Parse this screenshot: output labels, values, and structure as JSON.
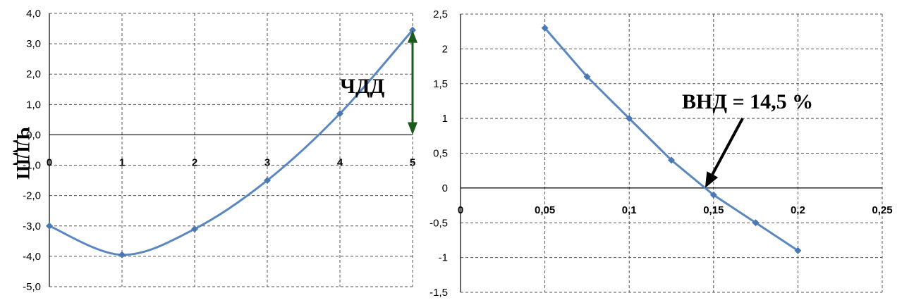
{
  "chart_data": [
    {
      "type": "line",
      "title": "",
      "xlabel": "",
      "ylabel": "ЧДДП",
      "x": [
        0,
        1,
        2,
        3,
        4,
        5
      ],
      "series": [
        {
          "values": [
            -3.0,
            -3.95,
            -3.1,
            -1.5,
            0.7,
            3.45
          ]
        }
      ],
      "xlim": [
        0,
        5
      ],
      "ylim": [
        -5.0,
        4.0
      ],
      "x_ticks": [
        "0",
        "1",
        "2",
        "3",
        "4",
        "5"
      ],
      "y_ticks": [
        "4,0",
        "3,0",
        "2,0",
        "1,0",
        "0,0",
        "-1,0",
        "-2,0",
        "-3,0",
        "-4,0",
        "-5,0"
      ],
      "annotation": "ЧДД",
      "annotation_arrow_color": "#1e5a1e",
      "grid": true,
      "series_color": "#5b87c0"
    },
    {
      "type": "line",
      "title": "",
      "xlabel": "",
      "ylabel": "",
      "x": [
        0.05,
        0.075,
        0.1,
        0.125,
        0.15,
        0.175,
        0.2
      ],
      "series": [
        {
          "values": [
            2.3,
            1.6,
            1.0,
            0.4,
            -0.1,
            -0.5,
            -0.9
          ]
        }
      ],
      "xlim": [
        0,
        0.25
      ],
      "ylim": [
        -1.5,
        2.5
      ],
      "x_ticks": [
        "0",
        "0,05",
        "0,1",
        "0,15",
        "0,2",
        "0,25"
      ],
      "y_ticks": [
        "2,5",
        "2",
        "1,5",
        "1",
        "0,5",
        "0",
        "-0,5",
        "-1",
        "-1,5"
      ],
      "annotation": "ВНД = 14,5 %",
      "annotation_x": 0.145,
      "grid": true,
      "series_color": "#5b87c0"
    }
  ]
}
